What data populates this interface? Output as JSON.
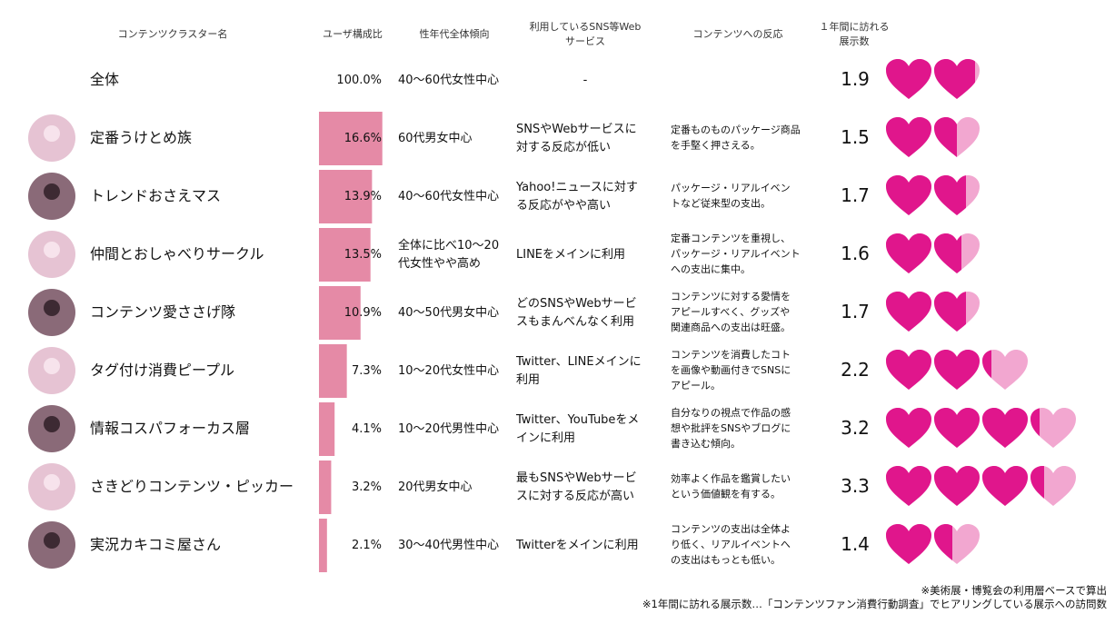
{
  "table": {
    "headers": [
      "コンテンツクラスター名",
      "ユーザ構成比",
      "性年代全体傾向",
      "利用しているSNS等Web\nサービス",
      "コンテンツへの反応",
      "１年間に訪れる\n展示数"
    ],
    "total": {
      "name": "全体",
      "share": {
        "value": 100.0,
        "label": "100.0%"
      },
      "age": "40〜60代女性中心",
      "sns": "-",
      "visits": 1.9
    },
    "rows": [
      {
        "name": "定番うけとめ族",
        "share": {
          "value": 16.6,
          "label": "16.6%"
        },
        "age": "60代男女中心",
        "sns": "SNSやWebサービスに\n対する反応が低い",
        "reaction": "定番ものものパッケージ商品\nを手堅く押さえる。",
        "visits": 1.5
      },
      {
        "name": "トレンドおさえマス",
        "share": {
          "value": 13.9,
          "label": "13.9%"
        },
        "age": "40〜60代女性中心",
        "sns": "Yahoo!ニュースに対す\nる反応がやや高い",
        "reaction": "パッケージ・リアルイベン\nトなど従来型の支出。",
        "visits": 1.7
      },
      {
        "name": "仲間とおしゃべりサークル",
        "share": {
          "value": 13.5,
          "label": "13.5%"
        },
        "age": "全体に比べ10〜20\n代女性やや高め",
        "sns": "LINEをメインに利用",
        "reaction": "定番コンテンツを重視し、\nパッケージ・リアルイベント\nへの支出に集中。",
        "visits": 1.6
      },
      {
        "name": "コンテンツ愛ささげ隊",
        "share": {
          "value": 10.9,
          "label": "10.9%"
        },
        "age": "40〜50代男女中心",
        "sns": "どのSNSやWebサービ\nスもまんべんなく利用",
        "reaction": "コンテンツに対する愛情を\nアピールすべく、グッズや\n関連商品への支出は旺盛。",
        "visits": 1.7
      },
      {
        "name": "タグ付け消費ピープル",
        "share": {
          "value": 7.3,
          "label": "7.3%"
        },
        "age": "10〜20代女性中心",
        "sns": "Twitter、LINEメインに\n利用",
        "reaction": "コンテンツを消費したコト\nを画像や動画付きでSNSに\nアピール。",
        "visits": 2.2
      },
      {
        "name": "情報コスパフォーカス層",
        "share": {
          "value": 4.1,
          "label": "4.1%"
        },
        "age": "10〜20代男性中心",
        "sns": "Twitter、YouTubeをメ\nインに利用",
        "reaction": "自分なりの視点で作品の感\n想や批評をSNSやブログに\n書き込む傾向。",
        "visits": 3.2
      },
      {
        "name": "さきどりコンテンツ・ピッカー",
        "share": {
          "value": 3.2,
          "label": "3.2%"
        },
        "age": "20代男女中心",
        "sns": "最もSNSやWebサービ\nスに対する反応が高い",
        "reaction": "効率よく作品を鑑賞したい\nという価値観を有する。",
        "visits": 3.3
      },
      {
        "name": "実況カキコミ屋さん",
        "share": {
          "value": 2.1,
          "label": "2.1%"
        },
        "age": "30〜40代男性中心",
        "sns": "Twitterをメインに利用",
        "reaction": "コンテンツの支出は全体よ\nり低く、リアルイベントへ\nの支出はもっとも低い。",
        "visits": 1.4
      }
    ]
  },
  "notes": [
    "※美術展・博覧会の利用層ベースで算出",
    "※1年間に訪れる展示数…「コンテンツファン消費行動調査」でヒアリングしている展示への訪問数"
  ]
}
